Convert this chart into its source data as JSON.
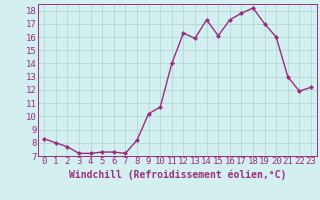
{
  "x": [
    0,
    1,
    2,
    3,
    4,
    5,
    6,
    7,
    8,
    9,
    10,
    11,
    12,
    13,
    14,
    15,
    16,
    17,
    18,
    19,
    20,
    21,
    22,
    23
  ],
  "y": [
    8.3,
    8.0,
    7.7,
    7.2,
    7.2,
    7.3,
    7.3,
    7.2,
    8.2,
    10.2,
    10.7,
    14.0,
    16.3,
    15.9,
    17.3,
    16.1,
    17.3,
    17.8,
    18.2,
    17.0,
    16.0,
    13.0,
    11.9,
    12.2
  ],
  "line_color": "#9b2d7f",
  "marker": "D",
  "marker_size": 2.0,
  "bg_color": "#d4efef",
  "grid_color": "#b0d8d8",
  "xlabel": "Windchill (Refroidissement éolien,°C)",
  "xlim": [
    -0.5,
    23.5
  ],
  "ylim": [
    7,
    18.5
  ],
  "yticks": [
    7,
    8,
    9,
    10,
    11,
    12,
    13,
    14,
    15,
    16,
    17,
    18
  ],
  "xticks": [
    0,
    1,
    2,
    3,
    4,
    5,
    6,
    7,
    8,
    9,
    10,
    11,
    12,
    13,
    14,
    15,
    16,
    17,
    18,
    19,
    20,
    21,
    22,
    23
  ],
  "xlabel_fontsize": 7.0,
  "tick_fontsize": 6.5,
  "line_width": 1.0
}
